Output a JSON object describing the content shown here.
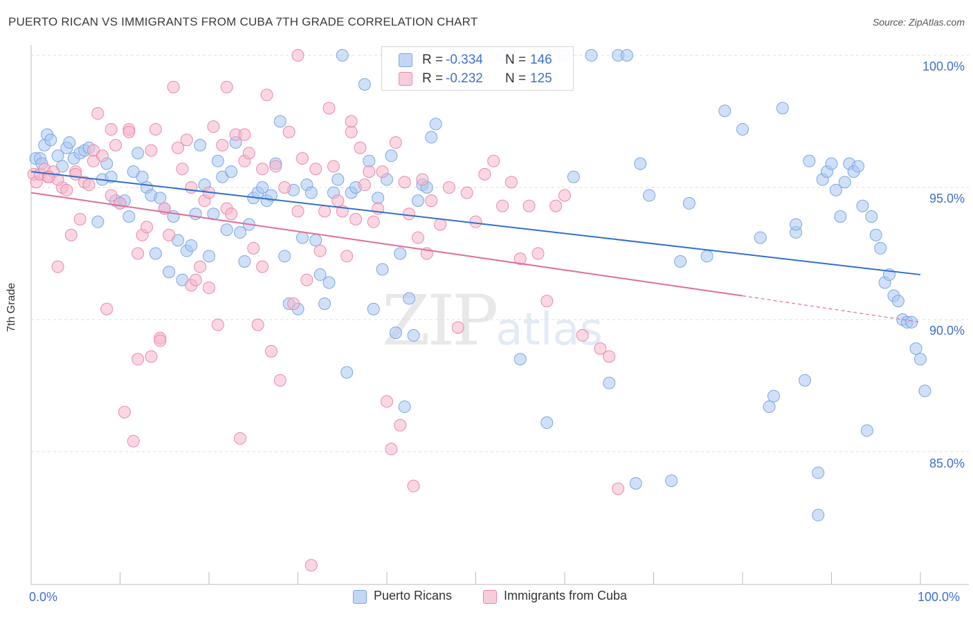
{
  "title": "PUERTO RICAN VS IMMIGRANTS FROM CUBA 7TH GRADE CORRELATION CHART",
  "source": "Source: ZipAtlas.com",
  "watermark": {
    "zip": "ZIP",
    "atlas": "atlas"
  },
  "legend_top": {
    "rows": [
      {
        "r_label": "R =",
        "r_value": "-0.334",
        "n_label": "N =",
        "n_value": "146",
        "color": "#a9c6f0"
      },
      {
        "r_label": "R =",
        "r_value": "-0.232",
        "n_label": "N =",
        "n_value": "125",
        "color": "#f5b7ca"
      }
    ]
  },
  "legend_bottom": [
    {
      "label": "Puerto Ricans",
      "color": "#a9c6f0"
    },
    {
      "label": "Immigrants from Cuba",
      "color": "#f5b7ca"
    }
  ],
  "chart_data": {
    "type": "scatter",
    "title": "PUERTO RICAN VS IMMIGRANTS FROM CUBA 7TH GRADE CORRELATION CHART",
    "xlabel": "",
    "ylabel": "7th Grade",
    "xlim": [
      0,
      100
    ],
    "ylim": [
      80.2,
      100.4
    ],
    "x_tick_labels": [
      "0.0%",
      "100.0%"
    ],
    "y_ticks": [
      100,
      95,
      90,
      85
    ],
    "y_tick_labels": [
      "100.0%",
      "95.0%",
      "90.0%",
      "85.0%"
    ],
    "grid": true,
    "legend_position": "bottom",
    "series": [
      {
        "name": "Puerto Ricans",
        "color": "#7aa7e6",
        "fill": "rgba(169,198,240,0.55)",
        "trend": {
          "x": [
            0,
            100
          ],
          "y": [
            95.6,
            91.7
          ],
          "color": "#2e6fd1"
        },
        "points": [
          [
            0.5,
            96.1
          ],
          [
            1.0,
            96.1
          ],
          [
            1.2,
            95.9
          ],
          [
            1.5,
            96.6
          ],
          [
            1.8,
            97.0
          ],
          [
            2.2,
            96.8
          ],
          [
            3.0,
            96.2
          ],
          [
            3.5,
            95.8
          ],
          [
            4.0,
            96.5
          ],
          [
            4.3,
            96.7
          ],
          [
            4.8,
            96.1
          ],
          [
            5.5,
            96.3
          ],
          [
            6.0,
            96.4
          ],
          [
            6.5,
            96.5
          ],
          [
            7.5,
            93.7
          ],
          [
            8.0,
            95.3
          ],
          [
            8.5,
            95.9
          ],
          [
            9.0,
            95.4
          ],
          [
            9.5,
            94.5
          ],
          [
            10.0,
            94.4
          ],
          [
            10.5,
            94.5
          ],
          [
            11.0,
            93.9
          ],
          [
            11.5,
            95.6
          ],
          [
            12.0,
            96.3
          ],
          [
            12.5,
            95.4
          ],
          [
            13.0,
            95.0
          ],
          [
            13.5,
            94.7
          ],
          [
            14.0,
            92.5
          ],
          [
            14.5,
            94.6
          ],
          [
            15.0,
            94.2
          ],
          [
            15.5,
            91.8
          ],
          [
            16.0,
            93.9
          ],
          [
            16.5,
            93.0
          ],
          [
            17.0,
            91.5
          ],
          [
            17.5,
            92.6
          ],
          [
            18.0,
            92.8
          ],
          [
            18.5,
            94.0
          ],
          [
            19.0,
            96.6
          ],
          [
            19.5,
            95.1
          ],
          [
            20.0,
            92.4
          ],
          [
            20.5,
            94.0
          ],
          [
            21.0,
            96.0
          ],
          [
            21.5,
            95.4
          ],
          [
            22.0,
            93.4
          ],
          [
            22.5,
            95.6
          ],
          [
            23.0,
            96.7
          ],
          [
            23.5,
            93.3
          ],
          [
            24.0,
            92.2
          ],
          [
            24.5,
            93.6
          ],
          [
            25.0,
            94.6
          ],
          [
            25.5,
            94.8
          ],
          [
            26.0,
            95.0
          ],
          [
            26.5,
            94.5
          ],
          [
            27.0,
            94.7
          ],
          [
            27.5,
            95.9
          ],
          [
            28.0,
            97.5
          ],
          [
            28.5,
            92.4
          ],
          [
            29.0,
            90.6
          ],
          [
            29.5,
            94.9
          ],
          [
            30.0,
            90.4
          ],
          [
            30.5,
            93.1
          ],
          [
            31.0,
            95.1
          ],
          [
            31.5,
            94.8
          ],
          [
            32.0,
            93.0
          ],
          [
            32.5,
            91.7
          ],
          [
            33.0,
            90.6
          ],
          [
            33.5,
            91.4
          ],
          [
            34.0,
            94.8
          ],
          [
            34.5,
            95.3
          ],
          [
            35.0,
            100.0
          ],
          [
            35.5,
            88.0
          ],
          [
            36.0,
            94.8
          ],
          [
            36.5,
            95.0
          ],
          [
            37.5,
            98.9
          ],
          [
            38.0,
            96.0
          ],
          [
            38.5,
            90.4
          ],
          [
            39.0,
            94.6
          ],
          [
            39.5,
            91.9
          ],
          [
            40.0,
            95.3
          ],
          [
            40.5,
            96.2
          ],
          [
            41.0,
            89.5
          ],
          [
            41.5,
            92.5
          ],
          [
            42.0,
            86.7
          ],
          [
            42.5,
            90.8
          ],
          [
            43.0,
            89.4
          ],
          [
            43.5,
            94.5
          ],
          [
            44.0,
            95.1
          ],
          [
            44.5,
            95.0
          ],
          [
            45.0,
            96.9
          ],
          [
            45.5,
            97.4
          ],
          [
            50.0,
            100.0
          ],
          [
            53.0,
            100.0
          ],
          [
            55.0,
            88.5
          ],
          [
            58.0,
            86.1
          ],
          [
            60.0,
            100.0
          ],
          [
            61.0,
            95.4
          ],
          [
            63.0,
            100.0
          ],
          [
            65.0,
            87.6
          ],
          [
            66.0,
            100.0
          ],
          [
            67.0,
            100.0
          ],
          [
            68.0,
            83.8
          ],
          [
            68.5,
            95.9
          ],
          [
            69.5,
            94.7
          ],
          [
            72.0,
            83.9
          ],
          [
            73.0,
            92.2
          ],
          [
            74.0,
            94.4
          ],
          [
            76.0,
            92.4
          ],
          [
            78.0,
            97.9
          ],
          [
            80.0,
            97.2
          ],
          [
            82.0,
            93.1
          ],
          [
            83.0,
            86.7
          ],
          [
            83.5,
            87.1
          ],
          [
            84.5,
            98.0
          ],
          [
            86.0,
            93.3
          ],
          [
            86.0,
            93.6
          ],
          [
            87.0,
            87.7
          ],
          [
            87.5,
            96.0
          ],
          [
            88.5,
            84.2
          ],
          [
            88.5,
            82.6
          ],
          [
            89.0,
            95.3
          ],
          [
            89.5,
            95.6
          ],
          [
            90.0,
            95.9
          ],
          [
            90.5,
            94.9
          ],
          [
            91.0,
            93.9
          ],
          [
            91.5,
            95.2
          ],
          [
            92.0,
            95.9
          ],
          [
            92.5,
            95.6
          ],
          [
            93.0,
            95.8
          ],
          [
            93.5,
            94.3
          ],
          [
            94.0,
            85.8
          ],
          [
            94.5,
            93.9
          ],
          [
            95.0,
            93.2
          ],
          [
            95.5,
            92.7
          ],
          [
            96.0,
            91.4
          ],
          [
            96.5,
            91.7
          ],
          [
            97.0,
            90.9
          ],
          [
            97.5,
            90.7
          ],
          [
            98.0,
            90.0
          ],
          [
            98.5,
            89.9
          ],
          [
            99.0,
            89.9
          ],
          [
            99.5,
            88.9
          ],
          [
            100.0,
            88.5
          ],
          [
            100.5,
            87.3
          ]
        ]
      },
      {
        "name": "Immigrants from Cuba",
        "color": "#e98aa8",
        "fill": "rgba(245,183,202,0.55)",
        "trend": {
          "x": [
            0,
            80
          ],
          "y": [
            94.8,
            90.9
          ],
          "dash_to": [
            100,
            89.9
          ],
          "color": "#e06d95"
        },
        "points": [
          [
            0.3,
            95.5
          ],
          [
            0.6,
            95.2
          ],
          [
            1.0,
            95.5
          ],
          [
            1.5,
            95.7
          ],
          [
            1.9,
            95.4
          ],
          [
            2.5,
            95.6
          ],
          [
            3.0,
            92.0
          ],
          [
            3.5,
            95.0
          ],
          [
            4.0,
            94.9
          ],
          [
            4.5,
            93.2
          ],
          [
            5.0,
            95.6
          ],
          [
            5.5,
            93.8
          ],
          [
            6.0,
            95.2
          ],
          [
            6.5,
            95.1
          ],
          [
            7.0,
            96.4
          ],
          [
            7.5,
            97.8
          ],
          [
            8.0,
            96.2
          ],
          [
            8.5,
            90.4
          ],
          [
            9.0,
            97.2
          ],
          [
            9.5,
            96.6
          ],
          [
            10.0,
            94.4
          ],
          [
            10.5,
            86.5
          ],
          [
            11.0,
            97.2
          ],
          [
            11.5,
            85.4
          ],
          [
            12.0,
            88.5
          ],
          [
            12.5,
            93.2
          ],
          [
            13.0,
            93.5
          ],
          [
            13.5,
            88.6
          ],
          [
            14.0,
            97.2
          ],
          [
            14.5,
            89.3
          ],
          [
            15.0,
            94.2
          ],
          [
            15.5,
            93.2
          ],
          [
            16.0,
            98.8
          ],
          [
            16.5,
            96.5
          ],
          [
            17.0,
            95.7
          ],
          [
            17.5,
            96.8
          ],
          [
            18.0,
            91.3
          ],
          [
            18.5,
            91.5
          ],
          [
            19.0,
            92.0
          ],
          [
            19.5,
            94.5
          ],
          [
            20.0,
            91.2
          ],
          [
            20.5,
            97.3
          ],
          [
            21.0,
            89.8
          ],
          [
            21.5,
            96.6
          ],
          [
            22.0,
            94.2
          ],
          [
            22.5,
            94.0
          ],
          [
            23.0,
            97.0
          ],
          [
            23.5,
            85.5
          ],
          [
            24.0,
            96.0
          ],
          [
            24.5,
            96.3
          ],
          [
            25.0,
            92.7
          ],
          [
            25.5,
            89.8
          ],
          [
            26.0,
            95.7
          ],
          [
            26.5,
            98.5
          ],
          [
            27.0,
            88.8
          ],
          [
            27.5,
            95.8
          ],
          [
            28.0,
            87.7
          ],
          [
            28.5,
            95.0
          ],
          [
            29.0,
            97.1
          ],
          [
            29.5,
            90.6
          ],
          [
            30.0,
            94.1
          ],
          [
            30.5,
            96.1
          ],
          [
            31.0,
            91.5
          ],
          [
            31.5,
            80.7
          ],
          [
            32.0,
            95.7
          ],
          [
            32.5,
            92.6
          ],
          [
            33.0,
            94.1
          ],
          [
            33.5,
            98.0
          ],
          [
            34.0,
            95.8
          ],
          [
            34.5,
            94.5
          ],
          [
            35.0,
            94.1
          ],
          [
            35.5,
            92.4
          ],
          [
            36.0,
            97.1
          ],
          [
            36.5,
            93.8
          ],
          [
            37.0,
            96.5
          ],
          [
            37.5,
            95.1
          ],
          [
            38.0,
            95.6
          ],
          [
            38.5,
            93.7
          ],
          [
            39.0,
            94.2
          ],
          [
            39.5,
            95.6
          ],
          [
            40.0,
            86.9
          ],
          [
            40.5,
            85.1
          ],
          [
            41.0,
            96.7
          ],
          [
            41.5,
            86.0
          ],
          [
            42.0,
            95.2
          ],
          [
            42.5,
            94.0
          ],
          [
            43.0,
            83.7
          ],
          [
            43.5,
            93.1
          ],
          [
            44.0,
            95.3
          ],
          [
            44.5,
            92.5
          ],
          [
            45.0,
            94.5
          ],
          [
            46.0,
            93.6
          ],
          [
            47.0,
            95.0
          ],
          [
            48.0,
            89.7
          ],
          [
            49.0,
            94.8
          ],
          [
            50.0,
            93.7
          ],
          [
            51.0,
            95.5
          ],
          [
            52.0,
            96.0
          ],
          [
            53.0,
            94.3
          ],
          [
            54.0,
            95.2
          ],
          [
            55.0,
            92.3
          ],
          [
            56.0,
            94.3
          ],
          [
            57.0,
            92.5
          ],
          [
            58.0,
            90.7
          ],
          [
            59.0,
            94.3
          ],
          [
            60.0,
            94.7
          ],
          [
            62.0,
            89.4
          ],
          [
            64.0,
            88.9
          ],
          [
            65.0,
            88.6
          ],
          [
            66.0,
            83.6
          ],
          [
            30.0,
            100.0
          ],
          [
            22.0,
            98.8
          ],
          [
            24.0,
            97.0
          ],
          [
            18.0,
            95.0
          ],
          [
            14.5,
            89.2
          ],
          [
            12.0,
            92.5
          ],
          [
            9.0,
            94.7
          ],
          [
            5.0,
            95.5
          ],
          [
            3.0,
            95.3
          ],
          [
            2.0,
            95.4
          ],
          [
            7.0,
            96.0
          ],
          [
            11.0,
            97.1
          ],
          [
            13.5,
            96.4
          ],
          [
            20.0,
            94.8
          ],
          [
            26.0,
            92.0
          ],
          [
            36.0,
            97.5
          ]
        ]
      }
    ]
  }
}
